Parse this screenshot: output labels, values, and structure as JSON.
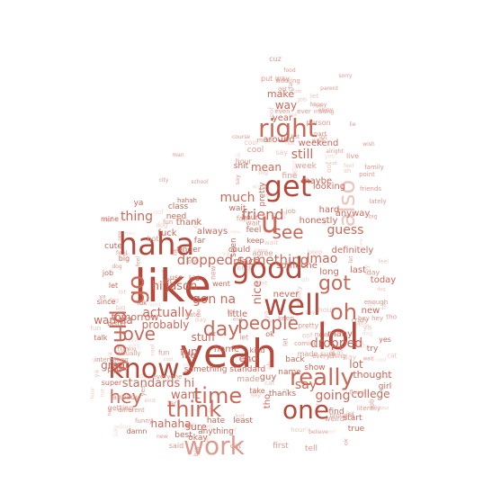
{
  "palette": {
    "dark": "#b5493b",
    "mid": "#c9695a",
    "light": "#dc9a8e",
    "pale": "#ecc5bd",
    "faint": "#f4dcd6"
  },
  "words": {
    "like": "like",
    "yeah": "yeah",
    "haha": "haha",
    "know": "know",
    "good": "good",
    "lol": "lol",
    "well": "well",
    "oh": "oh",
    "get": "get",
    "right": "right",
    "work": "work",
    "time": "time",
    "think": "think",
    "one": "one",
    "would": "would",
    "hey": "hey",
    "people": "people",
    "really": "really",
    "love": "love",
    "day": "day",
    "got": "got",
    "also": "also",
    "go": "go",
    "u": "u",
    "see": "see",
    "dropped_something": "dropped something",
    "much": "much",
    "friend": "friend",
    "thing": "thing",
    "hi_jason": "hi jason",
    "actually": "actually",
    "gon_na": "gon na",
    "want": "want",
    "say": "say",
    "going": "going",
    "still": "still",
    "mean": "mean",
    "guess": "guess",
    "lmao": "lmao",
    "standards_hi": "standards hi",
    "wan_na": "wan na",
    "dropped": "dropped",
    "lot": "lot",
    "thought": "thought",
    "college": "college",
    "great": "great",
    "hahaha": "hahaha",
    "sure": "sure",
    "make": "make",
    "way": "way",
    "year": "year",
    "put_way": "put way",
    "cuz": "cuz",
    "food": "food",
    "working": "working",
    "got_ta": "got ta",
    "even": "even",
    "ever": "ever",
    "making": "making",
    "person": "person",
    "around": "around",
    "weekend": "weekend",
    "cool": "cool",
    "week": "week",
    "fine": "fine",
    "part": "part",
    "looking": "looking",
    "maybe": "maybe",
    "anyway": "anyway",
    "honestly": "honestly",
    "hard": "hard",
    "definitely": "definitely",
    "probably": "probably",
    "stuff": "stuff",
    "fun": "fun",
    "home": "home",
    "end": "end",
    "today": "today",
    "new": "new",
    "many": "many",
    "nice": "nice",
    "place": "place",
    "someone": "someone",
    "long": "long",
    "last": "last",
    "never": "never",
    "little": "little",
    "tomorrow": "tomorrow",
    "life": "life",
    "something_standard": "something standard",
    "made": "made",
    "guy": "guy",
    "name": "name",
    "back": "back",
    "show": "show",
    "find": "find",
    "start": "start",
    "first": "first",
    "tell": "tell",
    "said": "said",
    "best": "best",
    "okay": "okay",
    "anything": "anything",
    "hate": "hate",
    "least": "least",
    "always": "always",
    "thank": "thank",
    "need": "need",
    "class": "class",
    "tinder": "tinder",
    "cute": "cute",
    "job": "job",
    "let": "let",
    "since": "since",
    "talk": "talk",
    "super": "super",
    "play": "play",
    "getting": "getting",
    "already": "already",
    "girl": "girl",
    "true": "true",
    "weird": "weird",
    "try": "try",
    "ok": "ok",
    "kind": "kind",
    "big": "big",
    "mine": "mine",
    "music": "music",
    "shit": "shit",
    "fuck": "fuck",
    "far": "far",
    "ya": "ya",
    "live": "live",
    "family": "family",
    "point": "point",
    "pretty": "pretty",
    "coming": "coming",
    "everything": "everything",
    "enough": "enough",
    "crazy": "crazy",
    "cat": "cat",
    "yes": "yes",
    "tho": "tho",
    "thanks": "thanks",
    "wait": "wait",
    "hour": "hour",
    "feel": "feel",
    "keep": "keep",
    "made_sure": "made sure",
    "could": "could",
    "take": "take",
    "seen": "seen",
    "agree": "agree",
    "hot": "hot",
    "man": "man",
    "city": "city",
    "lately": "lately",
    "enjoy": "enjoy",
    "happy": "happy",
    "friends": "friends",
    "hey_hey": "hey hey",
    "literally": "literally",
    "hahah": "hahah",
    "date": "date",
    "better": "better",
    "went": "went",
    "ah": "ah",
    "use": "use",
    "kid": "kid",
    "oof": "oof",
    "damn": "damn",
    "interesting": "interesting",
    "usually": "usually",
    "everyone": "everyone",
    "different": "different",
    "funny": "funny",
    "idk": "idk",
    "dog": "dog",
    "parent": "parent",
    "sorry": "sorry",
    "lie": "lie",
    "brought": "brought",
    "flower": "flower",
    "course": "course",
    "alright": "alright",
    "school": "school",
    "wish": "wish",
    "believe": "believe"
  }
}
